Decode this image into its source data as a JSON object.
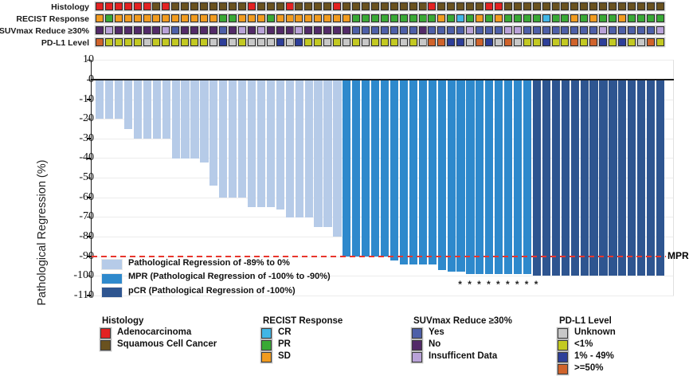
{
  "annotation_rows": [
    {
      "id": "histology",
      "label": "Histology",
      "codes": [
        "A",
        "A",
        "A",
        "A",
        "A",
        "A",
        "S",
        "A",
        "S",
        "S",
        "S",
        "S",
        "S",
        "S",
        "S",
        "S",
        "A",
        "S",
        "S",
        "S",
        "A",
        "S",
        "S",
        "S",
        "S",
        "A",
        "S",
        "S",
        "S",
        "S",
        "S",
        "S",
        "S",
        "S",
        "S",
        "A",
        "S",
        "S",
        "S",
        "S",
        "S",
        "A",
        "A",
        "S",
        "S",
        "S",
        "S",
        "S",
        "S",
        "S",
        "S",
        "S",
        "S",
        "S",
        "S",
        "S",
        "S",
        "S",
        "S",
        "S"
      ]
    },
    {
      "id": "recist",
      "label": "RECIST Response",
      "codes": [
        "SD",
        "PR",
        "SD",
        "SD",
        "SD",
        "SD",
        "SD",
        "SD",
        "SD",
        "SD",
        "SD",
        "SD",
        "SD",
        "PR",
        "PR",
        "SD",
        "SD",
        "SD",
        "PR",
        "SD",
        "SD",
        "SD",
        "SD",
        "SD",
        "SD",
        "SD",
        "SD",
        "PR",
        "PR",
        "PR",
        "PR",
        "PR",
        "PR",
        "PR",
        "PR",
        "PR",
        "SD",
        "PR",
        "CR",
        "PR",
        "SD",
        "PR",
        "SD",
        "PR",
        "PR",
        "PR",
        "PR",
        "CR",
        "PR",
        "PR",
        "SD",
        "PR",
        "SD",
        "PR",
        "PR",
        "SD",
        "PR",
        "PR",
        "PR",
        "PR"
      ]
    },
    {
      "id": "suvmax",
      "label": "SUVmax Reduce ≥30%",
      "codes": [
        "N",
        "I",
        "N",
        "N",
        "N",
        "N",
        "N",
        "I",
        "Y",
        "N",
        "N",
        "N",
        "N",
        "Y",
        "N",
        "I",
        "N",
        "I",
        "N",
        "N",
        "N",
        "I",
        "N",
        "N",
        "N",
        "N",
        "N",
        "Y",
        "Y",
        "Y",
        "Y",
        "Y",
        "Y",
        "Y",
        "N",
        "Y",
        "Y",
        "Y",
        "Y",
        "I",
        "Y",
        "Y",
        "Y",
        "I",
        "I",
        "Y",
        "Y",
        "Y",
        "Y",
        "Y",
        "Y",
        "Y",
        "Y",
        "I",
        "Y",
        "Y",
        "Y",
        "Y",
        "Y",
        "I"
      ]
    },
    {
      "id": "pdl1",
      "label": "PD-L1 Level",
      "codes": [
        "H",
        "L",
        "L",
        "L",
        "L",
        "U",
        "L",
        "L",
        "L",
        "L",
        "L",
        "L",
        "U",
        "M",
        "U",
        "L",
        "U",
        "U",
        "U",
        "M",
        "U",
        "M",
        "L",
        "L",
        "U",
        "L",
        "U",
        "L",
        "U",
        "L",
        "L",
        "L",
        "U",
        "L",
        "U",
        "H",
        "H",
        "M",
        "M",
        "U",
        "H",
        "M",
        "U",
        "H",
        "U",
        "L",
        "L",
        "M",
        "L",
        "L",
        "H",
        "L",
        "H",
        "M",
        "L",
        "M",
        "L",
        "U",
        "H",
        "L"
      ]
    }
  ],
  "palette": {
    "histology": {
      "A": "#e32222",
      "S": "#6a521f"
    },
    "recist": {
      "CR": "#41b6e6",
      "PR": "#39a935",
      "SD": "#f19b1f"
    },
    "suvmax": {
      "Y": "#4d5fa8",
      "N": "#532a68",
      "I": "#b9a2d8"
    },
    "pdl1": {
      "U": "#c8c8c8",
      "L": "#c3c922",
      "M": "#2e3f99",
      "H": "#d0632b"
    },
    "bars": {
      "light": "#b6cbe8",
      "mpr": "#2e89cc",
      "pcr": "#2e5590"
    },
    "red_line": "#e8352c"
  },
  "chart_data": {
    "type": "bar",
    "title": "",
    "ylabel": "Pathological Regression (%)",
    "ylim": [
      -110,
      10
    ],
    "yticks": [
      10,
      0,
      -10,
      -20,
      -30,
      -40,
      -50,
      -60,
      -70,
      -80,
      -90,
      -100,
      -110
    ],
    "grid": true,
    "n_patients": 60,
    "values": [
      -20,
      -20,
      -20,
      -25,
      -30,
      -30,
      -30,
      -30,
      -40,
      -40,
      -40,
      -42,
      -54,
      -60,
      -60,
      -60,
      -65,
      -65,
      -65,
      -66,
      -70,
      -70,
      -70,
      -75,
      -75,
      -80,
      -90,
      -90,
      -90,
      -90,
      -90,
      -92,
      -94,
      -94,
      -94,
      -94,
      -97,
      -98,
      -98,
      -99,
      -99,
      -99,
      -99,
      -99,
      -99,
      -99,
      -100,
      -100,
      -100,
      -100,
      -100,
      -100,
      -100,
      -100,
      -100,
      -100,
      -100,
      -100,
      -100,
      -100
    ],
    "groups": [
      "light",
      "light",
      "light",
      "light",
      "light",
      "light",
      "light",
      "light",
      "light",
      "light",
      "light",
      "light",
      "light",
      "light",
      "light",
      "light",
      "light",
      "light",
      "light",
      "light",
      "light",
      "light",
      "light",
      "light",
      "light",
      "light",
      "mpr",
      "mpr",
      "mpr",
      "mpr",
      "mpr",
      "mpr",
      "mpr",
      "mpr",
      "mpr",
      "mpr",
      "mpr",
      "mpr",
      "mpr",
      "mpr",
      "mpr",
      "mpr",
      "mpr",
      "mpr",
      "mpr",
      "mpr",
      "pcr",
      "pcr",
      "pcr",
      "pcr",
      "pcr",
      "pcr",
      "pcr",
      "pcr",
      "pcr",
      "pcr",
      "pcr",
      "pcr",
      "pcr",
      "pcr"
    ],
    "reference_line": {
      "value": -90,
      "label": "MPR",
      "style": "dashed-red"
    },
    "asterisk_columns": [
      39,
      40,
      41,
      42,
      43,
      44,
      45,
      46,
      47
    ],
    "asterisk_symbol": "*"
  },
  "plot_legend": [
    {
      "group": "light",
      "label": "Pathological Regression of -89% to 0%"
    },
    {
      "group": "mpr",
      "label": "MPR (Pathological Regression of -100% to -90%)"
    },
    {
      "group": "pcr",
      "label": "pCR (Pathological Regression of -100%)"
    }
  ],
  "bottom_legend": [
    {
      "title": "Histology",
      "x": 126,
      "items": [
        {
          "code": "A",
          "row": "histology",
          "label": "Adenocarcinoma"
        },
        {
          "code": "S",
          "row": "histology",
          "label": "Squamous Cell Cancer"
        }
      ]
    },
    {
      "title": "RECIST Response",
      "x": 328,
      "items": [
        {
          "code": "CR",
          "row": "recist",
          "label": "CR"
        },
        {
          "code": "PR",
          "row": "recist",
          "label": "PR"
        },
        {
          "code": "SD",
          "row": "recist",
          "label": "SD"
        }
      ]
    },
    {
      "title": "SUVmax Reduce ≥30%",
      "x": 517,
      "items": [
        {
          "code": "Y",
          "row": "suvmax",
          "label": "Yes"
        },
        {
          "code": "N",
          "row": "suvmax",
          "label": "No"
        },
        {
          "code": "I",
          "row": "suvmax",
          "label": "Insufficent Data"
        }
      ]
    },
    {
      "title": "PD-L1 Level",
      "x": 700,
      "items": [
        {
          "code": "U",
          "row": "pdl1",
          "label": "Unknown"
        },
        {
          "code": "L",
          "row": "pdl1",
          "label": "<1%"
        },
        {
          "code": "M",
          "row": "pdl1",
          "label": "1% - 49%"
        },
        {
          "code": "H",
          "row": "pdl1",
          "label": ">=50%"
        }
      ]
    }
  ]
}
